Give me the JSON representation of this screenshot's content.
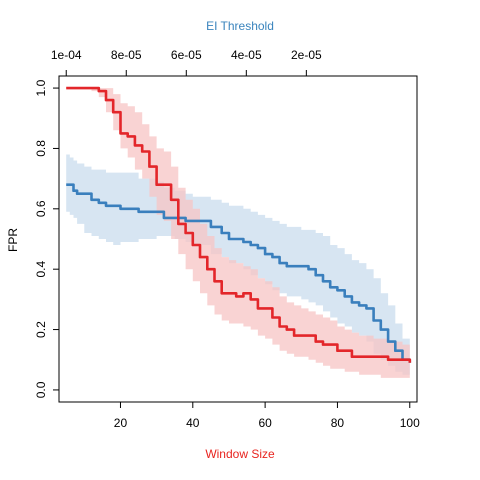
{
  "chart_data": {
    "type": "line",
    "title": "EI Threshold",
    "title_color": "#3a84bd",
    "xlabel": "Window Size",
    "xlabel_color": "#e8241f",
    "ylabel": "FPR",
    "xlim": [
      3,
      102
    ],
    "ylim": [
      -0.04,
      1.04
    ],
    "x_ticks": [
      20,
      40,
      60,
      80,
      100
    ],
    "x_tick_labels": [
      "20",
      "40",
      "60",
      "80",
      "100"
    ],
    "y_ticks": [
      0.0,
      0.2,
      0.4,
      0.6,
      0.8,
      1.0
    ],
    "y_tick_labels": [
      "0.0",
      "0.2",
      "0.4",
      "0.6",
      "0.8",
      "1.0"
    ],
    "top_axis": {
      "ticks": [
        5,
        21.6,
        38.2,
        54.8,
        71.4
      ],
      "tick_labels": [
        "1e-04",
        "8e-05",
        "6e-05",
        "4e-05",
        "2e-05"
      ]
    },
    "grid": false,
    "series": [
      {
        "color": "#3a7fbd",
        "band_color": "#bcd3ea",
        "x": [
          5,
          6,
          7,
          8,
          10,
          12,
          14,
          16,
          18,
          20,
          25,
          30,
          32,
          35,
          38,
          40,
          45,
          48,
          50,
          54,
          56,
          58,
          60,
          62,
          64,
          66,
          70,
          72,
          74,
          76,
          78,
          80,
          82,
          84,
          86,
          88,
          90,
          92,
          94,
          96,
          98,
          100
        ],
        "y": [
          0.68,
          0.68,
          0.66,
          0.65,
          0.65,
          0.63,
          0.62,
          0.61,
          0.61,
          0.6,
          0.59,
          0.59,
          0.57,
          0.57,
          0.56,
          0.56,
          0.54,
          0.52,
          0.5,
          0.49,
          0.48,
          0.47,
          0.45,
          0.44,
          0.42,
          0.41,
          0.41,
          0.4,
          0.38,
          0.36,
          0.34,
          0.33,
          0.31,
          0.29,
          0.28,
          0.27,
          0.23,
          0.2,
          0.16,
          0.13,
          0.1,
          0.09
        ],
        "lower": [
          0.59,
          0.58,
          0.57,
          0.55,
          0.52,
          0.51,
          0.5,
          0.49,
          0.48,
          0.49,
          0.5,
          0.51,
          0.51,
          0.5,
          0.49,
          0.48,
          0.45,
          0.44,
          0.42,
          0.4,
          0.38,
          0.37,
          0.35,
          0.33,
          0.32,
          0.31,
          0.3,
          0.29,
          0.28,
          0.26,
          0.24,
          0.22,
          0.21,
          0.19,
          0.18,
          0.16,
          0.12,
          0.1,
          0.08,
          0.06,
          0.05,
          0.06
        ],
        "upper": [
          0.78,
          0.77,
          0.76,
          0.75,
          0.74,
          0.73,
          0.73,
          0.72,
          0.72,
          0.72,
          0.7,
          0.69,
          0.67,
          0.66,
          0.65,
          0.64,
          0.63,
          0.62,
          0.61,
          0.6,
          0.59,
          0.58,
          0.57,
          0.56,
          0.55,
          0.54,
          0.53,
          0.53,
          0.52,
          0.51,
          0.48,
          0.47,
          0.45,
          0.43,
          0.42,
          0.4,
          0.37,
          0.32,
          0.28,
          0.22,
          0.17,
          0.15
        ]
      },
      {
        "color": "#e3262a",
        "band_color": "#f7c4c4",
        "x": [
          5,
          8,
          10,
          12,
          14,
          16,
          18,
          20,
          22,
          24,
          26,
          28,
          30,
          32,
          34,
          36,
          38,
          40,
          42,
          44,
          46,
          48,
          50,
          52,
          54,
          56,
          58,
          60,
          62,
          64,
          66,
          68,
          70,
          72,
          74,
          76,
          78,
          80,
          82,
          84,
          86,
          88,
          90,
          92,
          94,
          96,
          98,
          100
        ],
        "y": [
          1.0,
          1.0,
          1.0,
          1.0,
          0.99,
          0.96,
          0.92,
          0.85,
          0.84,
          0.81,
          0.79,
          0.74,
          0.68,
          0.68,
          0.63,
          0.55,
          0.52,
          0.48,
          0.44,
          0.4,
          0.36,
          0.32,
          0.32,
          0.31,
          0.32,
          0.3,
          0.27,
          0.27,
          0.24,
          0.21,
          0.2,
          0.18,
          0.18,
          0.18,
          0.16,
          0.15,
          0.15,
          0.13,
          0.13,
          0.11,
          0.11,
          0.11,
          0.11,
          0.11,
          0.1,
          0.1,
          0.1,
          0.09
        ],
        "lower": [
          1.0,
          1.0,
          1.0,
          0.99,
          0.97,
          0.92,
          0.86,
          0.8,
          0.77,
          0.73,
          0.7,
          0.64,
          0.58,
          0.56,
          0.5,
          0.45,
          0.4,
          0.36,
          0.32,
          0.28,
          0.25,
          0.23,
          0.22,
          0.22,
          0.21,
          0.2,
          0.18,
          0.17,
          0.15,
          0.13,
          0.12,
          0.11,
          0.11,
          0.1,
          0.09,
          0.08,
          0.07,
          0.07,
          0.06,
          0.06,
          0.05,
          0.05,
          0.05,
          0.04,
          0.04,
          0.04,
          0.04,
          0.04
        ],
        "upper": [
          1.0,
          1.0,
          1.0,
          1.0,
          1.0,
          1.0,
          0.98,
          0.95,
          0.94,
          0.92,
          0.88,
          0.84,
          0.8,
          0.79,
          0.74,
          0.67,
          0.63,
          0.6,
          0.55,
          0.51,
          0.47,
          0.44,
          0.43,
          0.42,
          0.41,
          0.4,
          0.37,
          0.36,
          0.34,
          0.31,
          0.29,
          0.28,
          0.27,
          0.26,
          0.25,
          0.24,
          0.23,
          0.21,
          0.2,
          0.19,
          0.18,
          0.18,
          0.17,
          0.17,
          0.16,
          0.16,
          0.15,
          0.14
        ]
      }
    ]
  }
}
